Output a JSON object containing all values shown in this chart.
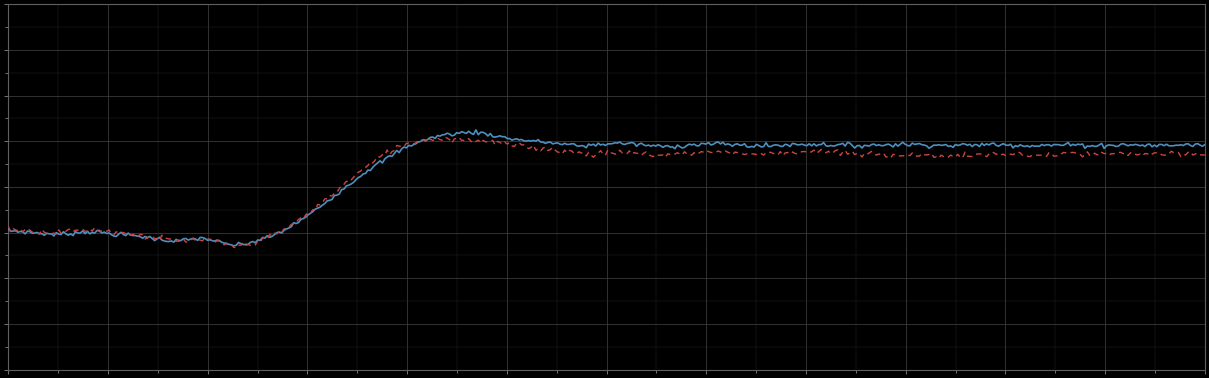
{
  "background_color": "#000000",
  "plot_bg_color": "#000000",
  "blue_line_color": "#4f8fbf",
  "red_line_color": "#cc4444",
  "figsize": [
    12.09,
    3.78
  ],
  "dpi": 100,
  "n_points": 500,
  "xlim": [
    0,
    1
  ],
  "ylim": [
    0,
    1
  ],
  "blue_points": [
    [
      0.0,
      0.62
    ],
    [
      0.01,
      0.622
    ],
    [
      0.02,
      0.625
    ],
    [
      0.03,
      0.628
    ],
    [
      0.04,
      0.63
    ],
    [
      0.05,
      0.628
    ],
    [
      0.06,
      0.624
    ],
    [
      0.07,
      0.622
    ],
    [
      0.08,
      0.626
    ],
    [
      0.09,
      0.63
    ],
    [
      0.1,
      0.632
    ],
    [
      0.11,
      0.635
    ],
    [
      0.12,
      0.64
    ],
    [
      0.13,
      0.645
    ],
    [
      0.14,
      0.648
    ],
    [
      0.15,
      0.645
    ],
    [
      0.16,
      0.64
    ],
    [
      0.17,
      0.645
    ],
    [
      0.18,
      0.655
    ],
    [
      0.19,
      0.66
    ],
    [
      0.2,
      0.655
    ],
    [
      0.21,
      0.645
    ],
    [
      0.22,
      0.635
    ],
    [
      0.23,
      0.62
    ],
    [
      0.24,
      0.6
    ],
    [
      0.25,
      0.58
    ],
    [
      0.26,
      0.555
    ],
    [
      0.27,
      0.53
    ],
    [
      0.28,
      0.505
    ],
    [
      0.29,
      0.48
    ],
    [
      0.3,
      0.455
    ],
    [
      0.31,
      0.435
    ],
    [
      0.32,
      0.415
    ],
    [
      0.33,
      0.395
    ],
    [
      0.34,
      0.38
    ],
    [
      0.35,
      0.37
    ],
    [
      0.36,
      0.36
    ],
    [
      0.37,
      0.355
    ],
    [
      0.38,
      0.352
    ],
    [
      0.39,
      0.35
    ],
    [
      0.4,
      0.355
    ],
    [
      0.41,
      0.362
    ],
    [
      0.42,
      0.368
    ],
    [
      0.43,
      0.372
    ],
    [
      0.44,
      0.375
    ],
    [
      0.45,
      0.378
    ],
    [
      0.46,
      0.382
    ],
    [
      0.47,
      0.385
    ],
    [
      0.48,
      0.388
    ],
    [
      0.49,
      0.385
    ],
    [
      0.5,
      0.382
    ],
    [
      0.51,
      0.38
    ],
    [
      0.52,
      0.382
    ],
    [
      0.53,
      0.385
    ],
    [
      0.54,
      0.388
    ],
    [
      0.55,
      0.39
    ],
    [
      0.56,
      0.388
    ],
    [
      0.57,
      0.385
    ],
    [
      0.58,
      0.383
    ],
    [
      0.59,
      0.382
    ],
    [
      0.6,
      0.383
    ],
    [
      0.61,
      0.385
    ],
    [
      0.62,
      0.387
    ],
    [
      0.63,
      0.388
    ],
    [
      0.64,
      0.387
    ],
    [
      0.65,
      0.385
    ],
    [
      0.66,
      0.384
    ],
    [
      0.67,
      0.383
    ],
    [
      0.68,
      0.384
    ],
    [
      0.69,
      0.385
    ],
    [
      0.7,
      0.386
    ],
    [
      0.71,
      0.387
    ],
    [
      0.72,
      0.386
    ],
    [
      0.73,
      0.385
    ],
    [
      0.74,
      0.384
    ],
    [
      0.75,
      0.383
    ],
    [
      0.76,
      0.384
    ],
    [
      0.77,
      0.385
    ],
    [
      0.78,
      0.386
    ],
    [
      0.79,
      0.387
    ],
    [
      0.8,
      0.386
    ],
    [
      0.81,
      0.385
    ],
    [
      0.82,
      0.384
    ],
    [
      0.83,
      0.384
    ],
    [
      0.84,
      0.385
    ],
    [
      0.85,
      0.386
    ],
    [
      0.86,
      0.387
    ],
    [
      0.87,
      0.386
    ],
    [
      0.88,
      0.385
    ],
    [
      0.89,
      0.385
    ],
    [
      0.9,
      0.386
    ],
    [
      0.91,
      0.387
    ],
    [
      0.92,
      0.386
    ],
    [
      0.93,
      0.385
    ],
    [
      0.94,
      0.385
    ],
    [
      0.95,
      0.386
    ],
    [
      0.96,
      0.387
    ],
    [
      0.97,
      0.386
    ],
    [
      0.98,
      0.385
    ],
    [
      0.99,
      0.385
    ],
    [
      1.0,
      0.385
    ]
  ],
  "red_points": [
    [
      0.0,
      0.615
    ],
    [
      0.01,
      0.617
    ],
    [
      0.02,
      0.62
    ],
    [
      0.03,
      0.623
    ],
    [
      0.04,
      0.625
    ],
    [
      0.05,
      0.622
    ],
    [
      0.06,
      0.618
    ],
    [
      0.07,
      0.616
    ],
    [
      0.08,
      0.62
    ],
    [
      0.09,
      0.624
    ],
    [
      0.1,
      0.628
    ],
    [
      0.11,
      0.632
    ],
    [
      0.12,
      0.638
    ],
    [
      0.13,
      0.643
    ],
    [
      0.14,
      0.648
    ],
    [
      0.15,
      0.648
    ],
    [
      0.16,
      0.645
    ],
    [
      0.17,
      0.648
    ],
    [
      0.18,
      0.658
    ],
    [
      0.19,
      0.663
    ],
    [
      0.2,
      0.658
    ],
    [
      0.21,
      0.648
    ],
    [
      0.22,
      0.635
    ],
    [
      0.23,
      0.618
    ],
    [
      0.24,
      0.598
    ],
    [
      0.25,
      0.575
    ],
    [
      0.26,
      0.55
    ],
    [
      0.27,
      0.522
    ],
    [
      0.28,
      0.495
    ],
    [
      0.29,
      0.468
    ],
    [
      0.3,
      0.442
    ],
    [
      0.31,
      0.42
    ],
    [
      0.32,
      0.4
    ],
    [
      0.33,
      0.385
    ],
    [
      0.34,
      0.375
    ],
    [
      0.35,
      0.37
    ],
    [
      0.36,
      0.368
    ],
    [
      0.37,
      0.368
    ],
    [
      0.38,
      0.37
    ],
    [
      0.39,
      0.372
    ],
    [
      0.4,
      0.375
    ],
    [
      0.41,
      0.38
    ],
    [
      0.42,
      0.385
    ],
    [
      0.43,
      0.388
    ],
    [
      0.44,
      0.392
    ],
    [
      0.45,
      0.395
    ],
    [
      0.46,
      0.4
    ],
    [
      0.47,
      0.405
    ],
    [
      0.48,
      0.408
    ],
    [
      0.49,
      0.41
    ],
    [
      0.5,
      0.408
    ],
    [
      0.51,
      0.405
    ],
    [
      0.52,
      0.408
    ],
    [
      0.53,
      0.41
    ],
    [
      0.54,
      0.412
    ],
    [
      0.55,
      0.413
    ],
    [
      0.56,
      0.41
    ],
    [
      0.57,
      0.407
    ],
    [
      0.58,
      0.405
    ],
    [
      0.59,
      0.404
    ],
    [
      0.6,
      0.405
    ],
    [
      0.61,
      0.407
    ],
    [
      0.62,
      0.409
    ],
    [
      0.63,
      0.41
    ],
    [
      0.64,
      0.408
    ],
    [
      0.65,
      0.405
    ],
    [
      0.66,
      0.404
    ],
    [
      0.67,
      0.403
    ],
    [
      0.68,
      0.404
    ],
    [
      0.69,
      0.406
    ],
    [
      0.7,
      0.408
    ],
    [
      0.71,
      0.41
    ],
    [
      0.72,
      0.411
    ],
    [
      0.73,
      0.412
    ],
    [
      0.74,
      0.413
    ],
    [
      0.75,
      0.412
    ],
    [
      0.76,
      0.413
    ],
    [
      0.77,
      0.414
    ],
    [
      0.78,
      0.415
    ],
    [
      0.79,
      0.416
    ],
    [
      0.8,
      0.415
    ],
    [
      0.81,
      0.413
    ],
    [
      0.82,
      0.411
    ],
    [
      0.83,
      0.41
    ],
    [
      0.84,
      0.411
    ],
    [
      0.85,
      0.413
    ],
    [
      0.86,
      0.414
    ],
    [
      0.87,
      0.413
    ],
    [
      0.88,
      0.411
    ],
    [
      0.89,
      0.41
    ],
    [
      0.9,
      0.411
    ],
    [
      0.91,
      0.412
    ],
    [
      0.92,
      0.411
    ],
    [
      0.93,
      0.41
    ],
    [
      0.94,
      0.409
    ],
    [
      0.95,
      0.41
    ],
    [
      0.96,
      0.411
    ],
    [
      0.97,
      0.412
    ],
    [
      0.98,
      0.411
    ],
    [
      0.99,
      0.41
    ],
    [
      1.0,
      0.41
    ]
  ]
}
